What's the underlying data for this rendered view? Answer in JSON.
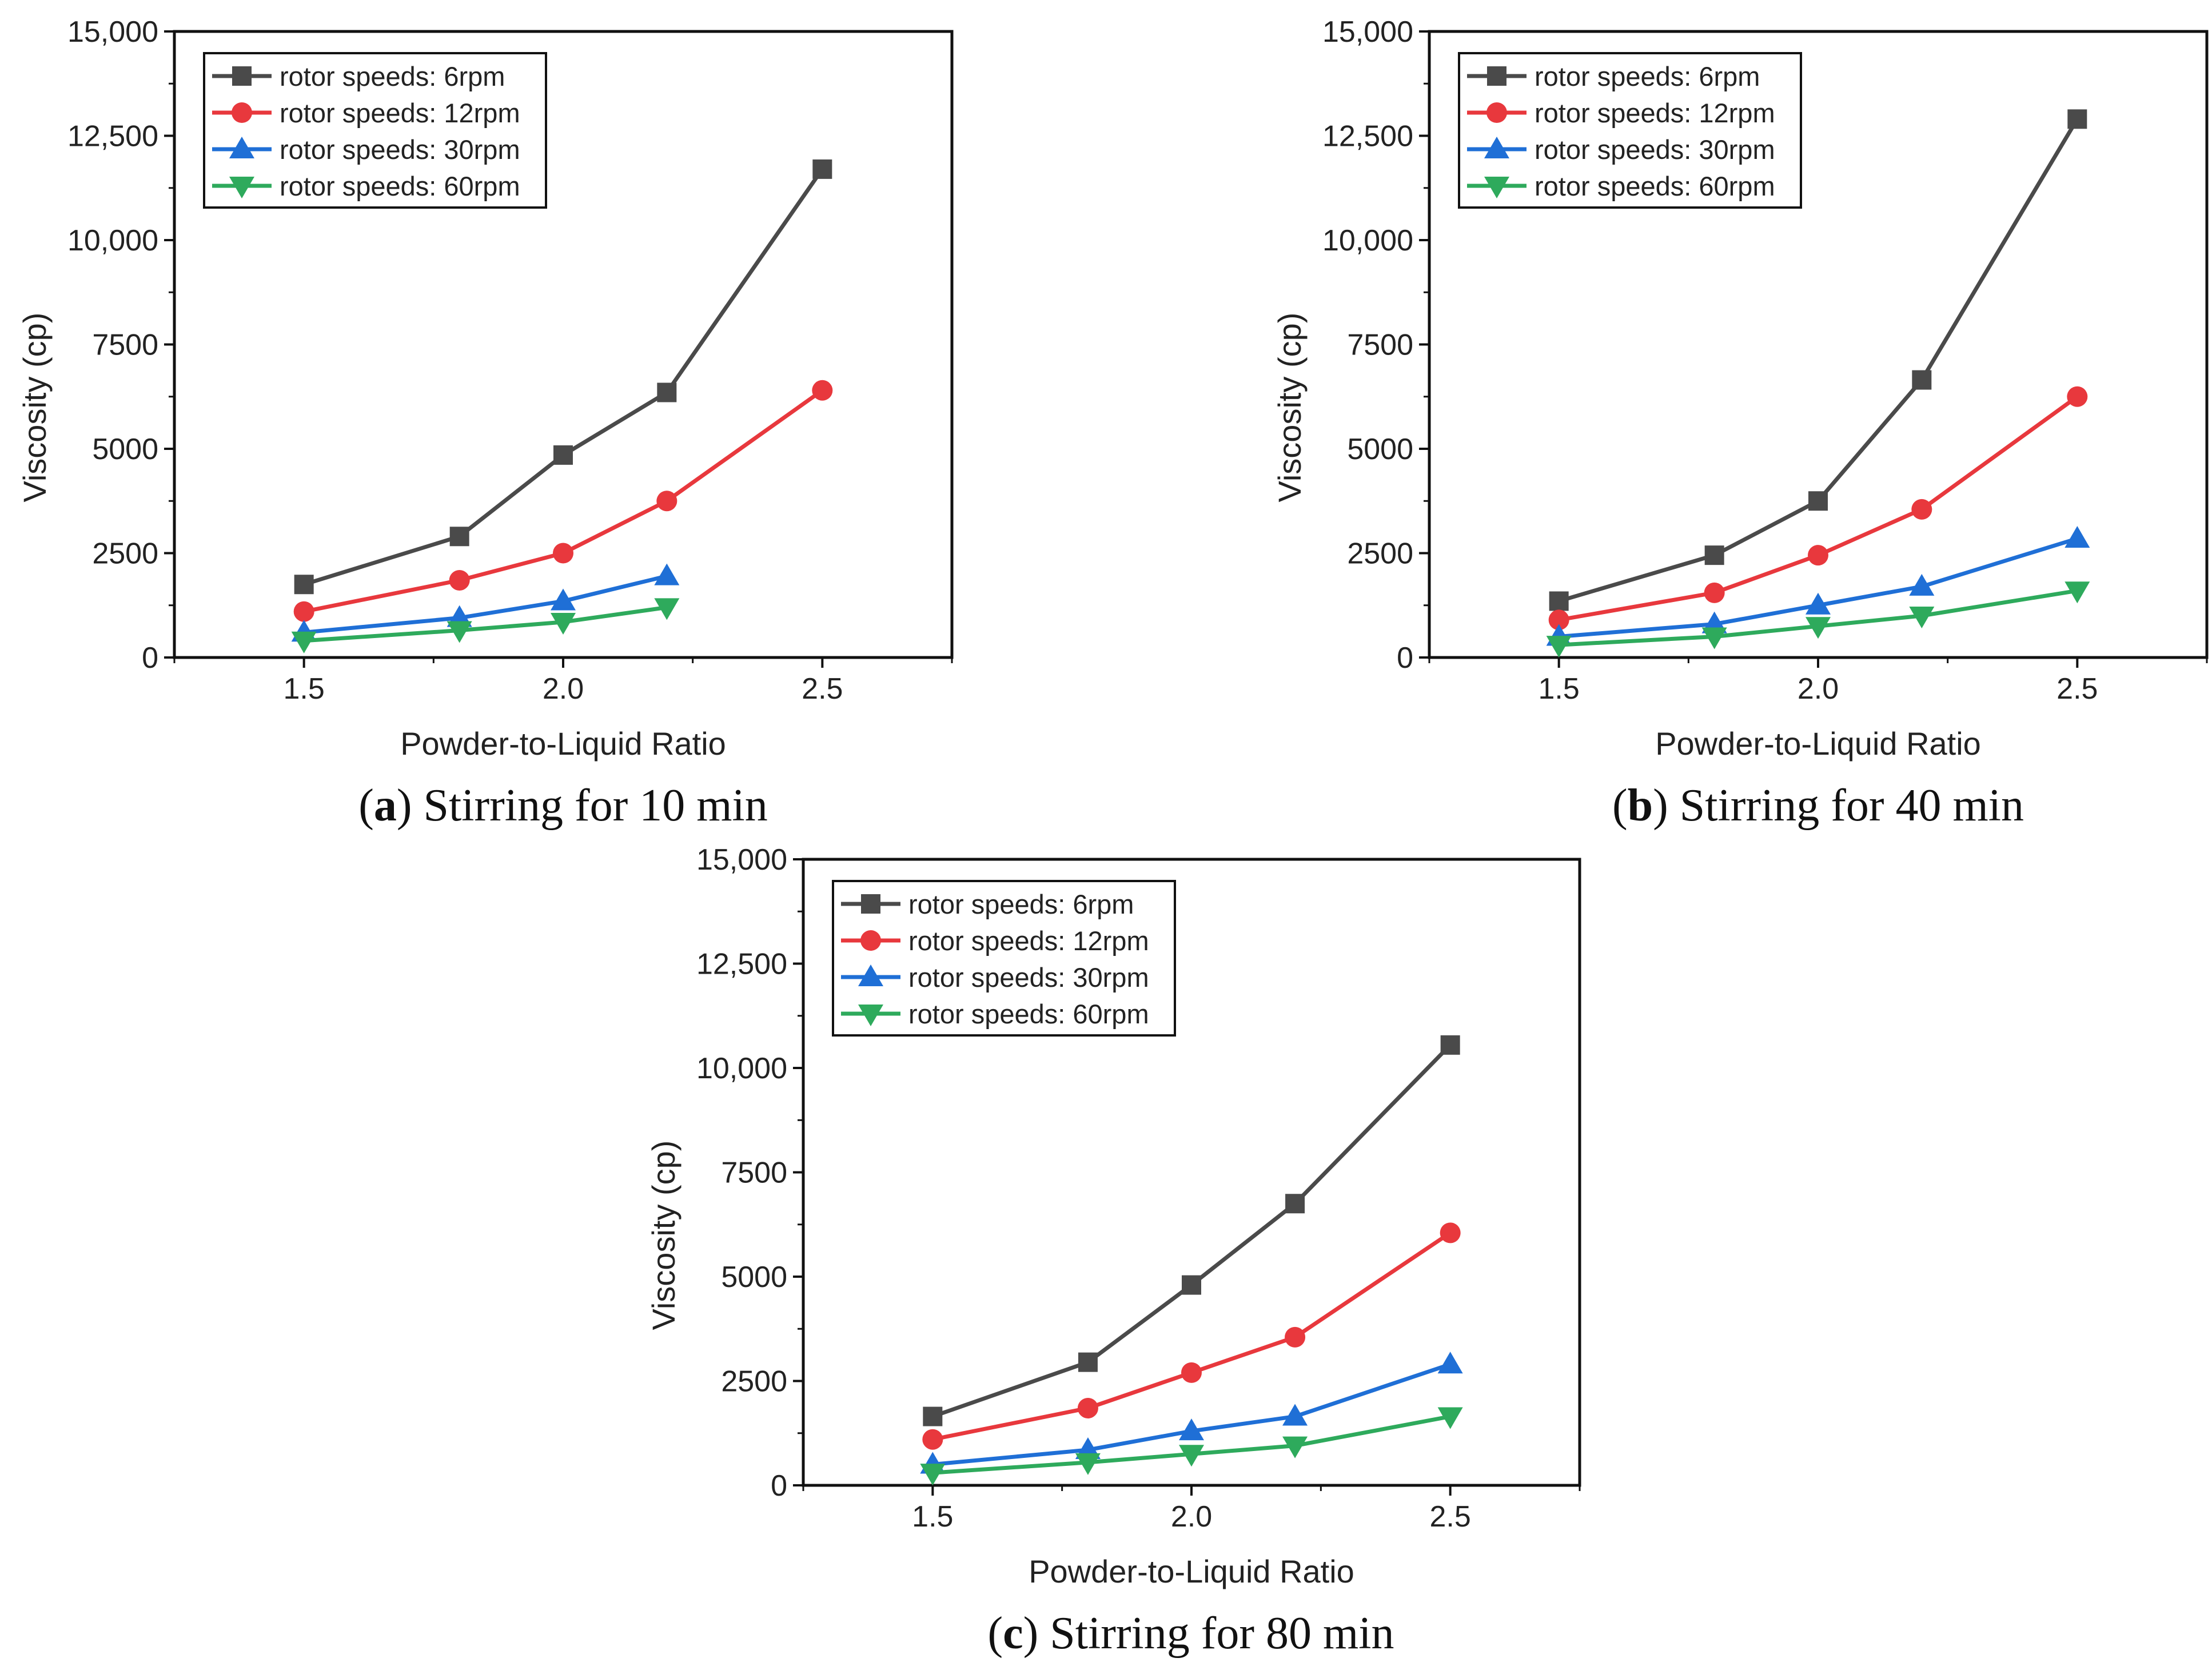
{
  "chart_data": [
    {
      "type": "line",
      "panel": "a",
      "caption_letter": "a",
      "caption_text": "Stirring for 10 min",
      "xlabel": "Powder-to-Liquid Ratio",
      "ylabel": "Viscosity (cp)",
      "xlim": [
        1.25,
        2.75
      ],
      "ylim": [
        0,
        15000
      ],
      "xticks": [
        1.5,
        2.0,
        2.5
      ],
      "xtick_labels": [
        "1.5",
        "2.0",
        "2.5"
      ],
      "yticks": [
        0,
        2500,
        5000,
        7500,
        10000,
        12500,
        15000
      ],
      "ytick_labels": [
        "0",
        "2500",
        "5000",
        "7500",
        "10,000",
        "12,500",
        "15,000"
      ],
      "legend_position": "top-left",
      "series": [
        {
          "name": "rotor speeds: 6rpm",
          "marker": "square",
          "color": "#4a4a4a",
          "x": [
            1.5,
            1.8,
            2.0,
            2.2,
            2.5
          ],
          "y": [
            1750,
            2900,
            4850,
            6350,
            11700
          ]
        },
        {
          "name": "rotor speeds: 12rpm",
          "marker": "circle",
          "color": "#e8383d",
          "x": [
            1.5,
            1.8,
            2.0,
            2.2,
            2.5
          ],
          "y": [
            1100,
            1850,
            2500,
            3750,
            6400
          ]
        },
        {
          "name": "rotor speeds: 30rpm",
          "marker": "triangle-up",
          "color": "#1f6fd6",
          "x": [
            1.5,
            1.8,
            2.0,
            2.2
          ],
          "y": [
            600,
            950,
            1350,
            1950
          ]
        },
        {
          "name": "rotor speeds: 60rpm",
          "marker": "triangle-down",
          "color": "#2eaa5c",
          "x": [
            1.5,
            1.8,
            2.0,
            2.2
          ],
          "y": [
            400,
            650,
            850,
            1200
          ]
        }
      ]
    },
    {
      "type": "line",
      "panel": "b",
      "caption_letter": "b",
      "caption_text": "Stirring for 40 min",
      "xlabel": "Powder-to-Liquid Ratio",
      "ylabel": "Viscosity (cp)",
      "xlim": [
        1.25,
        2.75
      ],
      "ylim": [
        0,
        15000
      ],
      "xticks": [
        1.5,
        2.0,
        2.5
      ],
      "xtick_labels": [
        "1.5",
        "2.0",
        "2.5"
      ],
      "yticks": [
        0,
        2500,
        5000,
        7500,
        10000,
        12500,
        15000
      ],
      "ytick_labels": [
        "0",
        "2500",
        "5000",
        "7500",
        "10,000",
        "12,500",
        "15,000"
      ],
      "legend_position": "top-left",
      "series": [
        {
          "name": "rotor speeds: 6rpm",
          "marker": "square",
          "color": "#4a4a4a",
          "x": [
            1.5,
            1.8,
            2.0,
            2.2,
            2.5
          ],
          "y": [
            1350,
            2450,
            3750,
            6650,
            12900
          ]
        },
        {
          "name": "rotor speeds: 12rpm",
          "marker": "circle",
          "color": "#e8383d",
          "x": [
            1.5,
            1.8,
            2.0,
            2.2,
            2.5
          ],
          "y": [
            900,
            1550,
            2450,
            3550,
            6250
          ]
        },
        {
          "name": "rotor speeds: 30rpm",
          "marker": "triangle-up",
          "color": "#1f6fd6",
          "x": [
            1.5,
            1.8,
            2.0,
            2.2,
            2.5
          ],
          "y": [
            500,
            800,
            1250,
            1700,
            2850
          ]
        },
        {
          "name": "rotor speeds: 60rpm",
          "marker": "triangle-down",
          "color": "#2eaa5c",
          "x": [
            1.5,
            1.8,
            2.0,
            2.2,
            2.5
          ],
          "y": [
            300,
            500,
            750,
            1000,
            1600
          ]
        }
      ]
    },
    {
      "type": "line",
      "panel": "c",
      "caption_letter": "c",
      "caption_text": "Stirring for 80 min",
      "xlabel": "Powder-to-Liquid Ratio",
      "ylabel": "Viscosity (cp)",
      "xlim": [
        1.25,
        2.75
      ],
      "ylim": [
        0,
        15000
      ],
      "xticks": [
        1.5,
        2.0,
        2.5
      ],
      "xtick_labels": [
        "1.5",
        "2.0",
        "2.5"
      ],
      "yticks": [
        0,
        2500,
        5000,
        7500,
        10000,
        12500,
        15000
      ],
      "ytick_labels": [
        "0",
        "2500",
        "5000",
        "7500",
        "10,000",
        "12,500",
        "15,000"
      ],
      "legend_position": "top-left",
      "series": [
        {
          "name": "rotor speeds: 6rpm",
          "marker": "square",
          "color": "#4a4a4a",
          "x": [
            1.5,
            1.8,
            2.0,
            2.2,
            2.5
          ],
          "y": [
            1650,
            2950,
            4800,
            6750,
            10550
          ]
        },
        {
          "name": "rotor speeds: 12rpm",
          "marker": "circle",
          "color": "#e8383d",
          "x": [
            1.5,
            1.8,
            2.0,
            2.2,
            2.5
          ],
          "y": [
            1100,
            1850,
            2700,
            3550,
            6050
          ]
        },
        {
          "name": "rotor speeds: 30rpm",
          "marker": "triangle-up",
          "color": "#1f6fd6",
          "x": [
            1.5,
            1.8,
            2.0,
            2.2,
            2.5
          ],
          "y": [
            500,
            850,
            1300,
            1650,
            2900
          ]
        },
        {
          "name": "rotor speeds: 60rpm",
          "marker": "triangle-down",
          "color": "#2eaa5c",
          "x": [
            1.5,
            1.8,
            2.0,
            2.2,
            2.5
          ],
          "y": [
            300,
            550,
            750,
            950,
            1650
          ]
        }
      ]
    }
  ]
}
